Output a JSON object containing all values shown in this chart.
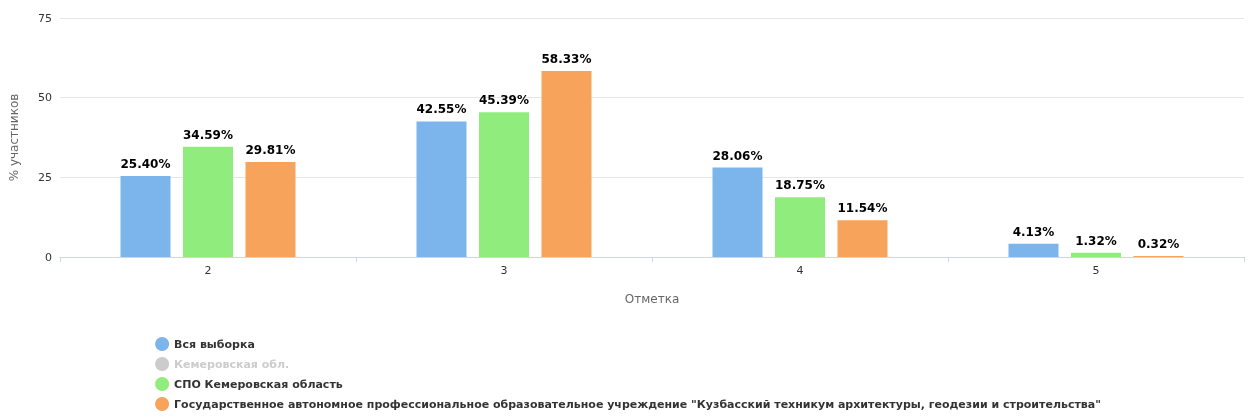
{
  "chart_data": {
    "type": "bar",
    "xlabel": "Отметка",
    "ylabel": "% участников",
    "categories": [
      "2",
      "3",
      "4",
      "5"
    ],
    "ylim": [
      0,
      75
    ],
    "yticks": [
      0,
      25,
      50,
      75
    ],
    "grid": "y",
    "legend": "bottom",
    "series": [
      {
        "name": "Вся выборка",
        "color": "#7cb5ec",
        "values": [
          25.4,
          42.55,
          28.06,
          4.13
        ],
        "value_labels": [
          "25.40%",
          "42.55%",
          "28.06%",
          "4.13%"
        ]
      },
      {
        "name": "Кемеровская обл.",
        "color": "#cccccc",
        "values": [
          null,
          null,
          null,
          null
        ]
      },
      {
        "name": "СПО Кемеровская область",
        "color": "#90ed7d",
        "values": [
          34.59,
          45.39,
          18.75,
          1.32
        ],
        "value_labels": [
          "34.59%",
          "45.39%",
          "18.75%",
          "1.32%"
        ]
      },
      {
        "name": "Государственное автономное профессиональное образовательное учреждение \"Кузбасский техникум архитектуры, геодезии и строительства\"",
        "color": "#f7a35c",
        "values": [
          29.81,
          58.33,
          11.54,
          0.32
        ],
        "value_labels": [
          "29.81%",
          "58.33%",
          "11.54%",
          "0.32%"
        ]
      }
    ]
  }
}
